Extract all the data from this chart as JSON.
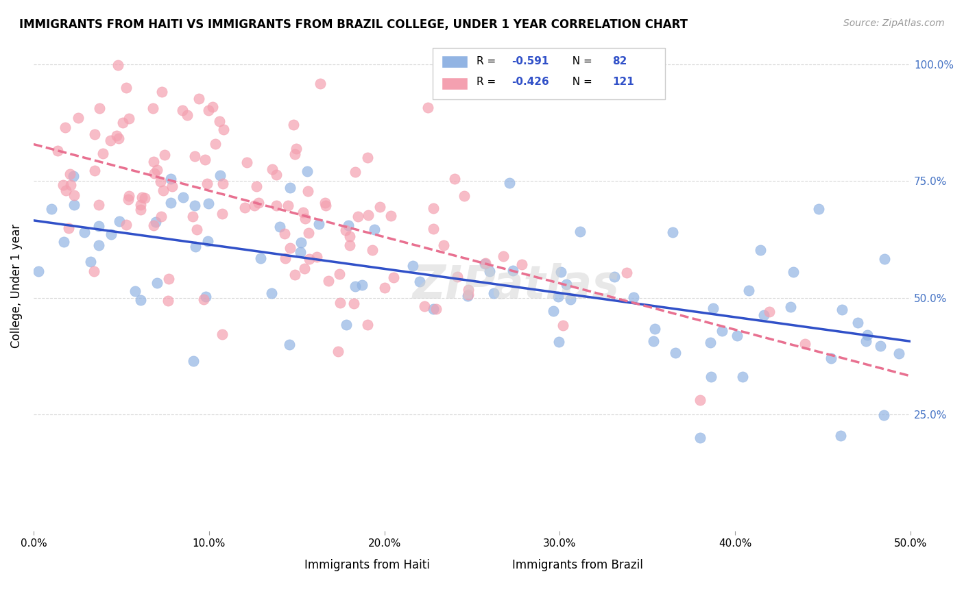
{
  "title": "IMMIGRANTS FROM HAITI VS IMMIGRANTS FROM BRAZIL COLLEGE, UNDER 1 YEAR CORRELATION CHART",
  "source": "Source: ZipAtlas.com",
  "xlabel": "",
  "ylabel": "College, Under 1 year",
  "xlim": [
    0.0,
    0.5
  ],
  "ylim": [
    0.0,
    1.05
  ],
  "right_yticks": [
    0.25,
    0.5,
    0.75,
    1.0
  ],
  "right_yticklabels": [
    "25.0%",
    "50.0%",
    "75.0%",
    "100.0%"
  ],
  "xticklabels": [
    "0.0%",
    "10.0%",
    "20.0%",
    "30.0%",
    "40.0%",
    "50.0%"
  ],
  "xticks": [
    0.0,
    0.1,
    0.2,
    0.3,
    0.4,
    0.5
  ],
  "haiti_R": -0.591,
  "haiti_N": 82,
  "brazil_R": -0.426,
  "brazil_N": 121,
  "haiti_color": "#92b4e3",
  "brazil_color": "#f4a0b0",
  "haiti_line_color": "#3050c8",
  "brazil_line_color": "#e87090",
  "watermark": "ZIPatlas",
  "background_color": "#ffffff",
  "grid_color": "#cccccc",
  "legend_label_haiti": "R =  -0.591   N =  82",
  "legend_label_brazil": "R =  -0.426   N = 121"
}
